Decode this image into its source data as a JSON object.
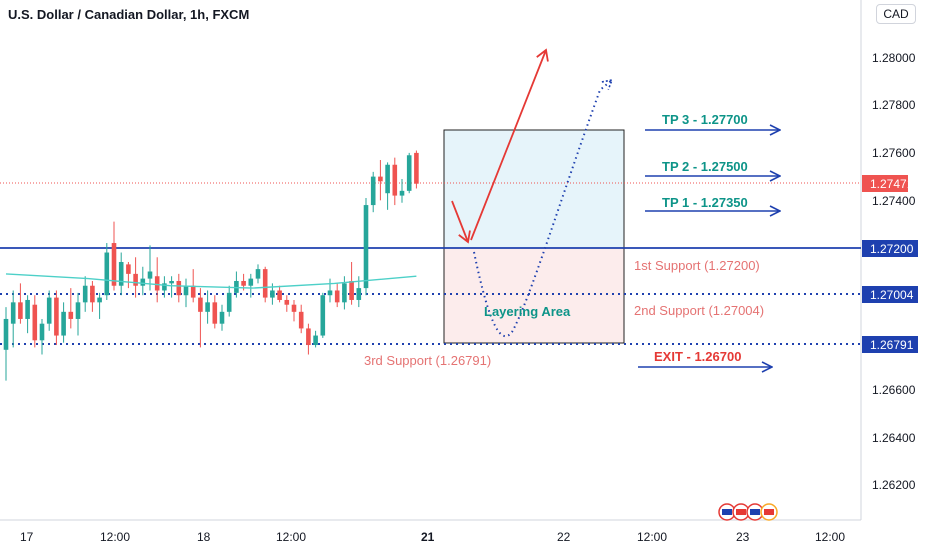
{
  "chart": {
    "title": "U.S. Dollar / Canadian Dollar, 1h, FXCM",
    "currency_button": "CAD",
    "price_axis": [
      "1.28000",
      "1.27800",
      "1.27600",
      "1.27400",
      "1.26600",
      "1.26400",
      "1.26200"
    ],
    "time_axis": [
      "17",
      "12:00",
      "18",
      "12:00",
      "21",
      "22",
      "12:00",
      "23",
      "12:00"
    ],
    "last_price": "1.27471",
    "level_1": "1.27200",
    "level_2": "1.27004",
    "level_3": "1.26791",
    "tp3": "TP 3 - 1.27700",
    "tp2": "TP 2 - 1.27500",
    "tp1": "TP 1 - 1.27350",
    "support1": "1st Support (1.27200)",
    "support2": "2nd Support (1.27004)",
    "support3": "3rd Support (1.26791)",
    "exit": "EXIT - 1.26700",
    "layering": "Layering Area",
    "colors": {
      "up": "#26a69a",
      "down": "#ef5350",
      "blue": "#1e40af",
      "teal": "#0d9488",
      "red": "#e53935",
      "ma": "#4dd0c8"
    }
  },
  "chart_data": {
    "type": "candlestick",
    "candles": [
      {
        "o": 1.2677,
        "h": 1.2695,
        "l": 1.2664,
        "c": 1.269
      },
      {
        "o": 1.2688,
        "h": 1.2702,
        "l": 1.2678,
        "c": 1.2697
      },
      {
        "o": 1.2697,
        "h": 1.2705,
        "l": 1.2688,
        "c": 1.269
      },
      {
        "o": 1.269,
        "h": 1.27,
        "l": 1.2684,
        "c": 1.2698
      },
      {
        "o": 1.2696,
        "h": 1.27,
        "l": 1.2678,
        "c": 1.2681
      },
      {
        "o": 1.2681,
        "h": 1.269,
        "l": 1.2675,
        "c": 1.2688
      },
      {
        "o": 1.2688,
        "h": 1.2702,
        "l": 1.2685,
        "c": 1.2699
      },
      {
        "o": 1.2699,
        "h": 1.2702,
        "l": 1.2679,
        "c": 1.2683
      },
      {
        "o": 1.2683,
        "h": 1.2697,
        "l": 1.268,
        "c": 1.2693
      },
      {
        "o": 1.2693,
        "h": 1.2703,
        "l": 1.2686,
        "c": 1.269
      },
      {
        "o": 1.269,
        "h": 1.2701,
        "l": 1.2683,
        "c": 1.2697
      },
      {
        "o": 1.2697,
        "h": 1.2708,
        "l": 1.2693,
        "c": 1.2704
      },
      {
        "o": 1.2704,
        "h": 1.2706,
        "l": 1.2693,
        "c": 1.2697
      },
      {
        "o": 1.2697,
        "h": 1.2701,
        "l": 1.269,
        "c": 1.2699
      },
      {
        "o": 1.27,
        "h": 1.2722,
        "l": 1.2698,
        "c": 1.2718
      },
      {
        "o": 1.2722,
        "h": 1.2731,
        "l": 1.2702,
        "c": 1.2704
      },
      {
        "o": 1.2704,
        "h": 1.2718,
        "l": 1.27,
        "c": 1.2714
      },
      {
        "o": 1.2713,
        "h": 1.2714,
        "l": 1.2703,
        "c": 1.2709
      },
      {
        "o": 1.2709,
        "h": 1.2716,
        "l": 1.2699,
        "c": 1.2704
      },
      {
        "o": 1.2704,
        "h": 1.2712,
        "l": 1.27,
        "c": 1.2707
      },
      {
        "o": 1.2707,
        "h": 1.2721,
        "l": 1.2702,
        "c": 1.271
      },
      {
        "o": 1.2708,
        "h": 1.2716,
        "l": 1.2697,
        "c": 1.2702
      },
      {
        "o": 1.2702,
        "h": 1.2708,
        "l": 1.2699,
        "c": 1.2705
      },
      {
        "o": 1.2705,
        "h": 1.2708,
        "l": 1.2699,
        "c": 1.2706
      },
      {
        "o": 1.2706,
        "h": 1.2709,
        "l": 1.2697,
        "c": 1.27
      },
      {
        "o": 1.27,
        "h": 1.2707,
        "l": 1.2695,
        "c": 1.2704
      },
      {
        "o": 1.2704,
        "h": 1.2711,
        "l": 1.2697,
        "c": 1.2699
      },
      {
        "o": 1.2699,
        "h": 1.2703,
        "l": 1.2678,
        "c": 1.2693
      },
      {
        "o": 1.2693,
        "h": 1.2702,
        "l": 1.2688,
        "c": 1.2697
      },
      {
        "o": 1.2697,
        "h": 1.27,
        "l": 1.2686,
        "c": 1.2688
      },
      {
        "o": 1.2688,
        "h": 1.2696,
        "l": 1.2685,
        "c": 1.2693
      },
      {
        "o": 1.2693,
        "h": 1.2704,
        "l": 1.2691,
        "c": 1.2701
      },
      {
        "o": 1.2701,
        "h": 1.271,
        "l": 1.2699,
        "c": 1.2706
      },
      {
        "o": 1.2706,
        "h": 1.2709,
        "l": 1.2702,
        "c": 1.2704
      },
      {
        "o": 1.2704,
        "h": 1.2709,
        "l": 1.2699,
        "c": 1.2707
      },
      {
        "o": 1.2707,
        "h": 1.2713,
        "l": 1.2705,
        "c": 1.2711
      },
      {
        "o": 1.2711,
        "h": 1.2712,
        "l": 1.2697,
        "c": 1.2699
      },
      {
        "o": 1.2699,
        "h": 1.2705,
        "l": 1.2696,
        "c": 1.2702
      },
      {
        "o": 1.2702,
        "h": 1.2704,
        "l": 1.2697,
        "c": 1.2698
      },
      {
        "o": 1.2698,
        "h": 1.27,
        "l": 1.2693,
        "c": 1.2696
      },
      {
        "o": 1.2696,
        "h": 1.2698,
        "l": 1.2689,
        "c": 1.2693
      },
      {
        "o": 1.2693,
        "h": 1.2696,
        "l": 1.2684,
        "c": 1.2686
      },
      {
        "o": 1.2686,
        "h": 1.2688,
        "l": 1.2675,
        "c": 1.2679
      },
      {
        "o": 1.2679,
        "h": 1.2685,
        "l": 1.2678,
        "c": 1.2683
      },
      {
        "o": 1.2683,
        "h": 1.2701,
        "l": 1.2682,
        "c": 1.27
      },
      {
        "o": 1.27,
        "h": 1.2707,
        "l": 1.2697,
        "c": 1.2702
      },
      {
        "o": 1.2702,
        "h": 1.2705,
        "l": 1.2695,
        "c": 1.2697
      },
      {
        "o": 1.2697,
        "h": 1.2708,
        "l": 1.2694,
        "c": 1.2705
      },
      {
        "o": 1.2706,
        "h": 1.2714,
        "l": 1.2696,
        "c": 1.2698
      },
      {
        "o": 1.2698,
        "h": 1.2708,
        "l": 1.2695,
        "c": 1.2703
      },
      {
        "o": 1.2703,
        "h": 1.2741,
        "l": 1.27,
        "c": 1.2738
      },
      {
        "o": 1.2738,
        "h": 1.2752,
        "l": 1.2735,
        "c": 1.275
      },
      {
        "o": 1.275,
        "h": 1.2757,
        "l": 1.274,
        "c": 1.2748
      },
      {
        "o": 1.2743,
        "h": 1.2756,
        "l": 1.2736,
        "c": 1.2755
      },
      {
        "o": 1.2755,
        "h": 1.2758,
        "l": 1.2738,
        "c": 1.2742
      },
      {
        "o": 1.2742,
        "h": 1.2749,
        "l": 1.2739,
        "c": 1.2744
      },
      {
        "o": 1.2744,
        "h": 1.276,
        "l": 1.2743,
        "c": 1.2759
      },
      {
        "o": 1.276,
        "h": 1.2761,
        "l": 1.2745,
        "c": 1.2747
      }
    ],
    "ma": [
      1.2709,
      1.2707,
      1.2704,
      1.2703,
      1.2705,
      1.2708
    ]
  }
}
